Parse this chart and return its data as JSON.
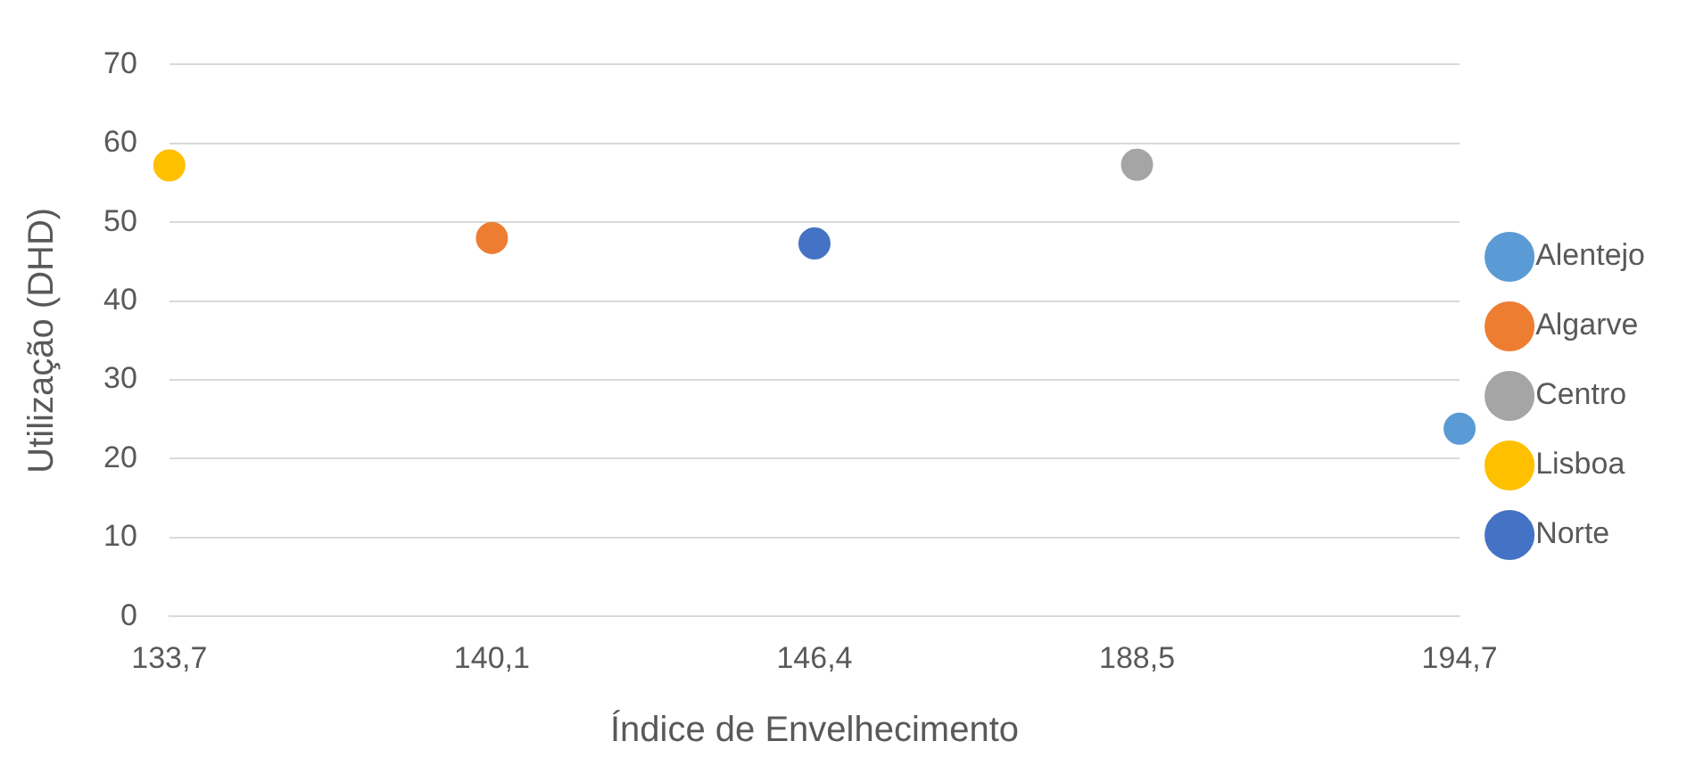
{
  "chart_data": {
    "type": "line",
    "xlabel": "Índice de Envelhecimento",
    "ylabel": "Utilização (DHD)",
    "categories": [
      "133,7",
      "140,1",
      "146,4",
      "188,5",
      "194,7"
    ],
    "ylim": [
      0,
      70
    ],
    "yticks": [
      0,
      10,
      20,
      30,
      40,
      50,
      60,
      70
    ],
    "grid": "y",
    "legend": "right",
    "marker": "circle",
    "series": [
      {
        "name": "Alentejo",
        "color": "#5b9bd5",
        "values": [
          null,
          null,
          null,
          null,
          23.8
        ]
      },
      {
        "name": "Algarve",
        "color": "#ed7d31",
        "values": [
          null,
          48.0,
          null,
          null,
          null
        ]
      },
      {
        "name": "Centro",
        "color": "#a5a5a5",
        "values": [
          null,
          null,
          null,
          57.3,
          null
        ]
      },
      {
        "name": "Lisboa",
        "color": "#ffc000",
        "values": [
          57.2,
          null,
          null,
          null,
          null
        ]
      },
      {
        "name": "Norte",
        "color": "#4472c4",
        "values": [
          null,
          null,
          47.3,
          null,
          null
        ]
      }
    ]
  }
}
